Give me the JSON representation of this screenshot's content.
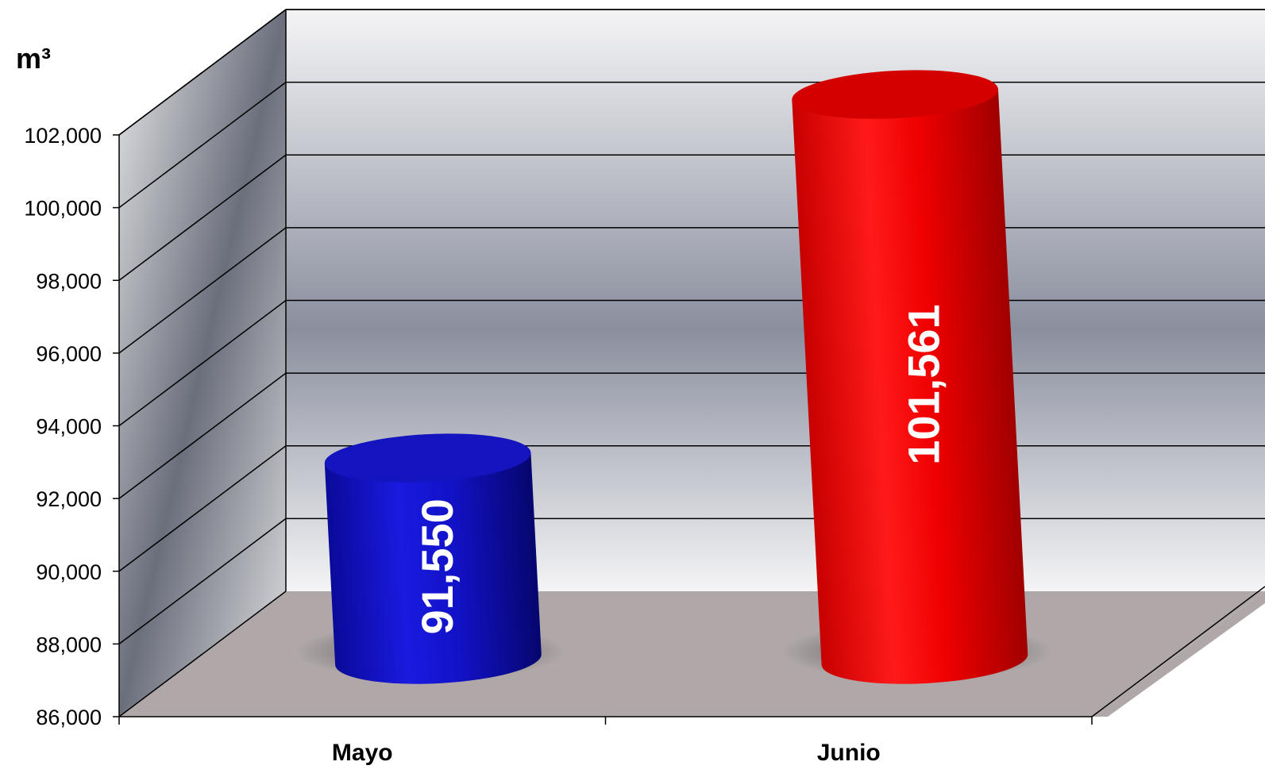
{
  "chart_data": {
    "type": "bar",
    "style": "3d-cylinder",
    "unit_label": "m³",
    "categories": [
      "Mayo",
      "Junio"
    ],
    "values": [
      91550,
      101561
    ],
    "data_labels": [
      "91,550",
      "101,561"
    ],
    "colors": [
      "#1010c8",
      "#ff0d0d"
    ],
    "ylim": [
      86000,
      102000
    ],
    "y_ticks": [
      86000,
      88000,
      90000,
      92000,
      94000,
      96000,
      98000,
      100000,
      102000
    ],
    "y_tick_labels": [
      "86,000",
      "88,000",
      "90,000",
      "92,000",
      "94,000",
      "96,000",
      "98,000",
      "100,000",
      "102,000"
    ],
    "grid": true,
    "legend": "none"
  }
}
